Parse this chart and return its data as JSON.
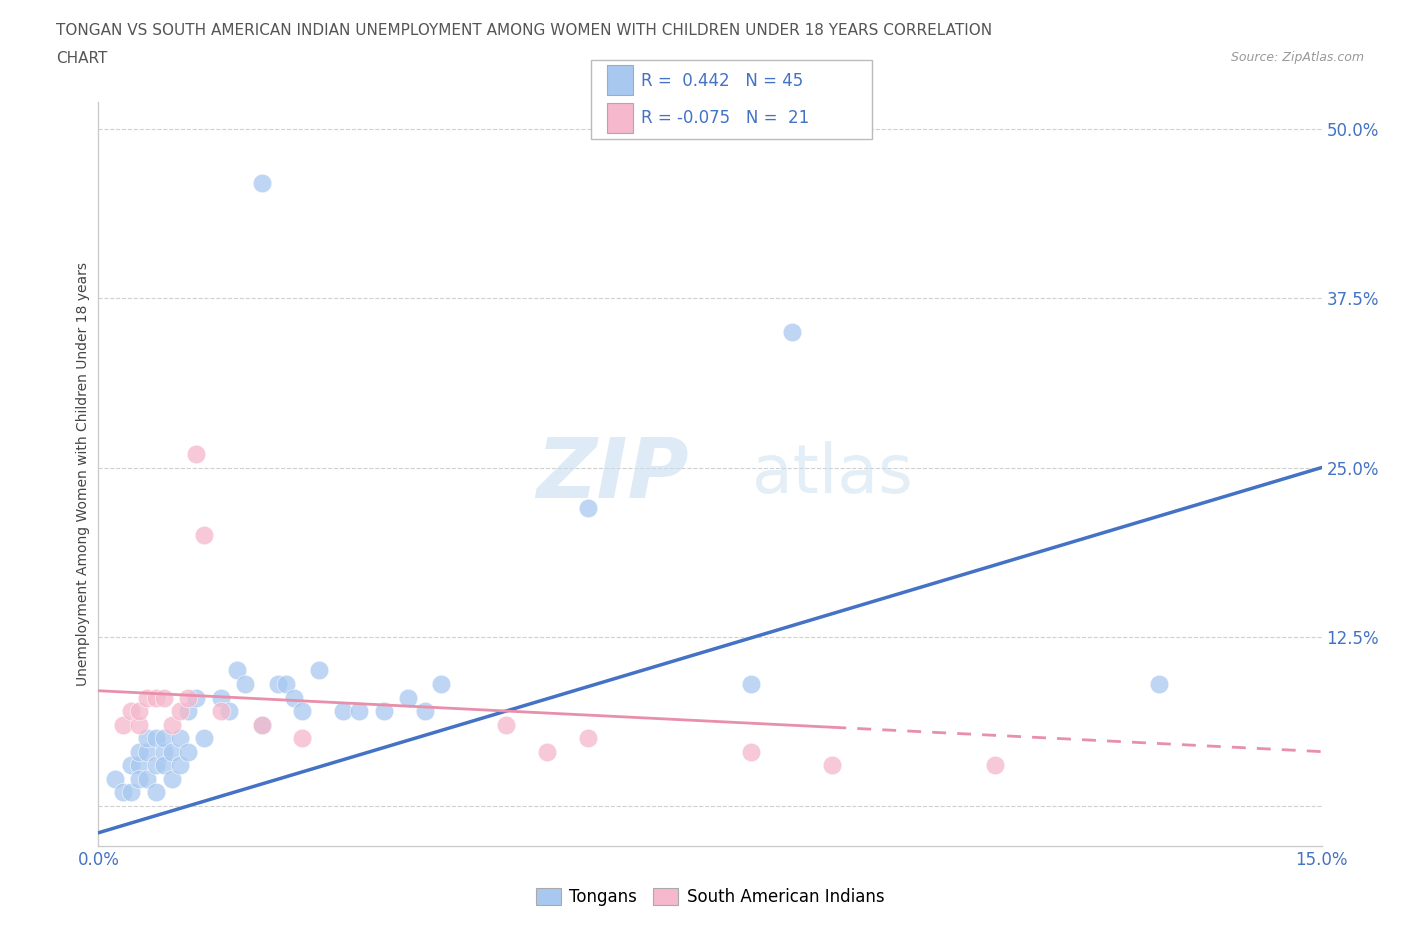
{
  "title_line1": "TONGAN VS SOUTH AMERICAN INDIAN UNEMPLOYMENT AMONG WOMEN WITH CHILDREN UNDER 18 YEARS CORRELATION",
  "title_line2": "CHART",
  "source": "Source: ZipAtlas.com",
  "ylabel": "Unemployment Among Women with Children Under 18 years",
  "xmin": 0.0,
  "xmax": 0.15,
  "ymin": -0.03,
  "ymax": 0.52,
  "yticks": [
    0.0,
    0.125,
    0.25,
    0.375,
    0.5
  ],
  "ytick_labels": [
    "",
    "12.5%",
    "25.0%",
    "37.5%",
    "50.0%"
  ],
  "xtick_labels": [
    "0.0%",
    "15.0%"
  ],
  "legend_r1": "R =  0.442",
  "legend_n1": "N = 45",
  "legend_r2": "R = -0.075",
  "legend_n2": "N =  21",
  "color_tongans": "#A8C8F0",
  "color_sai": "#F5B8CC",
  "color_line_tongans": "#4472C4",
  "color_line_sai": "#E88FAA",
  "watermark_zip": "ZIP",
  "watermark_atlas": "atlas",
  "tongans_x": [
    0.002,
    0.003,
    0.004,
    0.004,
    0.005,
    0.005,
    0.005,
    0.006,
    0.006,
    0.006,
    0.007,
    0.007,
    0.007,
    0.008,
    0.008,
    0.008,
    0.009,
    0.009,
    0.01,
    0.01,
    0.011,
    0.011,
    0.012,
    0.013,
    0.015,
    0.016,
    0.017,
    0.018,
    0.02,
    0.022,
    0.023,
    0.024,
    0.025,
    0.027,
    0.03,
    0.032,
    0.035,
    0.038,
    0.04,
    0.042,
    0.02,
    0.06,
    0.08,
    0.085,
    0.13
  ],
  "tongans_y": [
    0.02,
    0.01,
    0.03,
    0.01,
    0.03,
    0.02,
    0.04,
    0.02,
    0.04,
    0.05,
    0.03,
    0.05,
    0.01,
    0.04,
    0.03,
    0.05,
    0.02,
    0.04,
    0.03,
    0.05,
    0.07,
    0.04,
    0.08,
    0.05,
    0.08,
    0.07,
    0.1,
    0.09,
    0.06,
    0.09,
    0.09,
    0.08,
    0.07,
    0.1,
    0.07,
    0.07,
    0.07,
    0.08,
    0.07,
    0.09,
    0.46,
    0.22,
    0.09,
    0.35,
    0.09
  ],
  "sai_x": [
    0.003,
    0.004,
    0.005,
    0.005,
    0.006,
    0.007,
    0.008,
    0.009,
    0.01,
    0.011,
    0.012,
    0.013,
    0.015,
    0.02,
    0.025,
    0.05,
    0.055,
    0.06,
    0.08,
    0.09,
    0.11
  ],
  "sai_y": [
    0.06,
    0.07,
    0.06,
    0.07,
    0.08,
    0.08,
    0.08,
    0.06,
    0.07,
    0.08,
    0.26,
    0.2,
    0.07,
    0.06,
    0.05,
    0.06,
    0.04,
    0.05,
    0.04,
    0.03,
    0.03
  ],
  "trendline_blue_x0": 0.0,
  "trendline_blue_y0": -0.02,
  "trendline_blue_x1": 0.15,
  "trendline_blue_y1": 0.25,
  "trendline_pink_x0": 0.0,
  "trendline_pink_y0": 0.085,
  "trendline_pink_x1": 0.15,
  "trendline_pink_y1": 0.04
}
